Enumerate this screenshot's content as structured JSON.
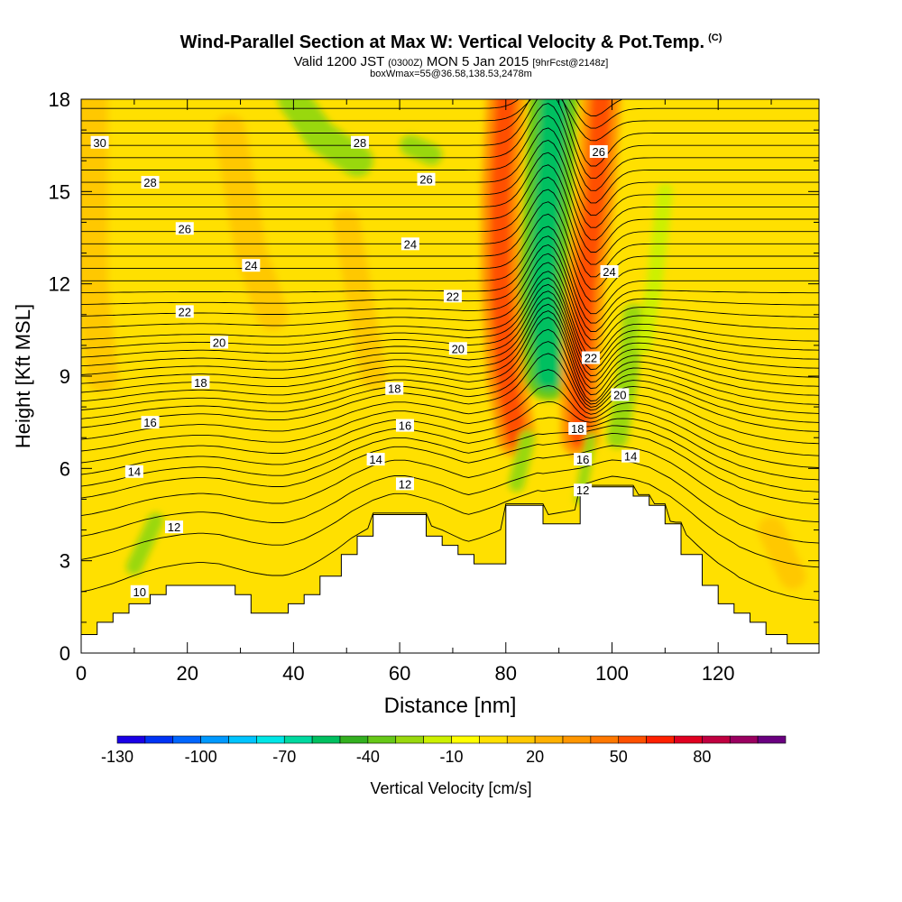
{
  "header": {
    "title": "Wind-Parallel Section at Max W: Vertical Velocity & Pot.Temp.",
    "title_mark": "(C)",
    "subtitle_a": "Valid 1200 JST",
    "subtitle_b": "(0300Z)",
    "subtitle_c": "MON 5 Jan 2015",
    "subtitle_d": "[9hrFcst@2148z]",
    "subtitle_line3": "boxWmax=55@36.58,138.53,2478m"
  },
  "chart_data": {
    "type": "heatmap",
    "xlabel": "Distance [nm]",
    "ylabel": "Height [Kft MSL]",
    "xlim": [
      0,
      139
    ],
    "ylim": [
      0,
      18
    ],
    "x_ticks": [
      0,
      20,
      40,
      60,
      80,
      100,
      120
    ],
    "y_ticks": [
      0,
      3,
      6,
      9,
      12,
      15,
      18
    ],
    "colorbar": {
      "label": "Vertical Velocity [cm/s]",
      "range": [
        -130,
        110
      ],
      "step": 10,
      "tick_labels": [
        -130,
        -100,
        -70,
        -40,
        -10,
        20,
        50,
        80
      ],
      "colors": [
        "#1a00e6",
        "#0033f5",
        "#0066ff",
        "#0099ff",
        "#00c4ff",
        "#00e6e6",
        "#00d9a0",
        "#00c060",
        "#33b020",
        "#66c818",
        "#99d80e",
        "#ccf000",
        "#ffff00",
        "#ffe000",
        "#ffc800",
        "#ffb000",
        "#ff9600",
        "#ff7800",
        "#ff5000",
        "#ff2000",
        "#e00020",
        "#c00040",
        "#9a0060",
        "#6a0080"
      ]
    },
    "terrain_kft": [
      [
        0,
        0.6
      ],
      [
        3,
        0.6
      ],
      [
        3,
        1.0
      ],
      [
        6,
        1.0
      ],
      [
        6,
        1.3
      ],
      [
        9,
        1.3
      ],
      [
        9,
        1.6
      ],
      [
        13,
        1.6
      ],
      [
        13,
        1.9
      ],
      [
        16,
        1.9
      ],
      [
        16,
        2.2
      ],
      [
        29,
        2.2
      ],
      [
        29,
        1.9
      ],
      [
        32,
        1.9
      ],
      [
        32,
        1.3
      ],
      [
        39,
        1.3
      ],
      [
        39,
        1.6
      ],
      [
        42,
        1.6
      ],
      [
        42,
        1.9
      ],
      [
        45,
        1.9
      ],
      [
        45,
        2.5
      ],
      [
        49,
        2.5
      ],
      [
        49,
        3.2
      ],
      [
        52,
        3.2
      ],
      [
        52,
        3.8
      ],
      [
        55,
        3.8
      ],
      [
        55,
        4.5
      ],
      [
        65,
        4.5
      ],
      [
        65,
        3.8
      ],
      [
        68,
        3.8
      ],
      [
        68,
        3.5
      ],
      [
        71,
        3.5
      ],
      [
        71,
        3.2
      ],
      [
        74,
        3.2
      ],
      [
        74,
        2.9
      ],
      [
        80,
        2.9
      ],
      [
        80,
        4.8
      ],
      [
        87,
        4.8
      ],
      [
        87,
        4.2
      ],
      [
        94,
        4.2
      ],
      [
        94,
        5.4
      ],
      [
        104,
        5.4
      ],
      [
        104,
        5.1
      ],
      [
        107,
        5.1
      ],
      [
        107,
        4.8
      ],
      [
        110,
        4.8
      ],
      [
        110,
        4.2
      ],
      [
        113,
        4.2
      ],
      [
        113,
        3.2
      ],
      [
        117,
        3.2
      ],
      [
        117,
        2.2
      ],
      [
        120,
        2.2
      ],
      [
        120,
        1.6
      ],
      [
        123,
        1.6
      ],
      [
        123,
        1.3
      ],
      [
        126,
        1.3
      ],
      [
        126,
        1.0
      ],
      [
        129,
        1.0
      ],
      [
        129,
        0.6
      ],
      [
        133,
        0.6
      ],
      [
        133,
        0.3
      ],
      [
        139,
        0.3
      ],
      [
        139,
        0
      ],
      [
        0,
        0
      ]
    ],
    "velocity_features": [
      {
        "kind": "updraft",
        "value": 55,
        "path": [
          [
            80,
            18
          ],
          [
            79,
            15
          ],
          [
            79,
            12
          ],
          [
            80,
            9
          ],
          [
            82,
            7
          ]
        ],
        "width_nm": 4
      },
      {
        "kind": "downdraft",
        "value": -60,
        "path": [
          [
            89,
            18
          ],
          [
            88,
            15
          ],
          [
            87,
            12
          ],
          [
            88,
            9
          ]
        ],
        "width_nm": 5
      },
      {
        "kind": "updraft",
        "value": 55,
        "path": [
          [
            98,
            18
          ],
          [
            97,
            15
          ],
          [
            95,
            12
          ],
          [
            94,
            9
          ],
          [
            94,
            7
          ]
        ],
        "width_nm": 4
      },
      {
        "kind": "downdraft",
        "value": -30,
        "path": [
          [
            96,
            7
          ],
          [
            95,
            6
          ],
          [
            94,
            5
          ]
        ],
        "width_nm": 2
      },
      {
        "kind": "downdraft",
        "value": -25,
        "path": [
          [
            104,
            11
          ],
          [
            103,
            9
          ],
          [
            101,
            7
          ]
        ],
        "width_nm": 4
      },
      {
        "kind": "downdraft",
        "value": -20,
        "path": [
          [
            110,
            15
          ],
          [
            108,
            12
          ],
          [
            106,
            10
          ]
        ],
        "width_nm": 3
      },
      {
        "kind": "downdraft",
        "value": -25,
        "path": [
          [
            40,
            18
          ],
          [
            45,
            16.8
          ],
          [
            52,
            16
          ]
        ],
        "width_nm": 6
      },
      {
        "kind": "downdraft",
        "value": -25,
        "path": [
          [
            62,
            16.5
          ],
          [
            66,
            16.2
          ]
        ],
        "width_nm": 4
      },
      {
        "kind": "downdraft",
        "value": -25,
        "path": [
          [
            10,
            2.8
          ],
          [
            14,
            4.3
          ]
        ],
        "width_nm": 3
      },
      {
        "kind": "downdraft",
        "value": -25,
        "path": [
          [
            82,
            5.5
          ],
          [
            84,
            7
          ]
        ],
        "width_nm": 3
      },
      {
        "kind": "updraft",
        "value": 15,
        "path": [
          [
            2,
            18
          ],
          [
            2,
            12
          ],
          [
            4,
            9
          ]
        ],
        "width_nm": 6
      },
      {
        "kind": "updraft",
        "value": 15,
        "path": [
          [
            28,
            17
          ],
          [
            32,
            13
          ],
          [
            36,
            11
          ]
        ],
        "width_nm": 6
      },
      {
        "kind": "updraft",
        "value": 15,
        "path": [
          [
            50,
            14
          ],
          [
            53,
            11
          ],
          [
            55,
            9
          ]
        ],
        "width_nm": 5
      },
      {
        "kind": "updraft",
        "value": 12,
        "path": [
          [
            130,
            4
          ],
          [
            134,
            2.5
          ]
        ],
        "width_nm": 5
      }
    ],
    "theta_contours": {
      "values": [
        10,
        10.5,
        11,
        11.5,
        12,
        12.5,
        13,
        13.5,
        14,
        14.5,
        15,
        15.5,
        16,
        16.5,
        17,
        17.5,
        18,
        18.5,
        19,
        19.5,
        20,
        20.5,
        21,
        21.5,
        22,
        22.5,
        23,
        23.5,
        24,
        24.5,
        25,
        25.5,
        26,
        26.5,
        27,
        27.5,
        28,
        28.5,
        29,
        29.5,
        30
      ],
      "ref_heights_kft": [
        1.5,
        2.6,
        3.4,
        4.1,
        4.7,
        5.1,
        5.5,
        5.9,
        6.3,
        6.7,
        7.1,
        7.4,
        7.7,
        8.0,
        8.3,
        8.6,
        8.9,
        9.2,
        9.5,
        9.8,
        10.1,
        10.5,
        10.9,
        11.3,
        11.7,
        12.1,
        12.5,
        12.9,
        13.3,
        13.7,
        14.1,
        14.5,
        14.9,
        15.3,
        15.7,
        16.1,
        16.5,
        16.9,
        17.3,
        17.7,
        18.1
      ]
    },
    "theta_labels": [
      {
        "text": "30",
        "x": 3.5,
        "y": 16.6
      },
      {
        "text": "28",
        "x": 13,
        "y": 15.3
      },
      {
        "text": "26",
        "x": 19.5,
        "y": 13.8
      },
      {
        "text": "24",
        "x": 32,
        "y": 12.6
      },
      {
        "text": "22",
        "x": 19.5,
        "y": 11.1
      },
      {
        "text": "20",
        "x": 26,
        "y": 10.1
      },
      {
        "text": "18",
        "x": 22.5,
        "y": 8.8
      },
      {
        "text": "16",
        "x": 13,
        "y": 7.5
      },
      {
        "text": "14",
        "x": 10,
        "y": 5.9
      },
      {
        "text": "12",
        "x": 17.5,
        "y": 4.1
      },
      {
        "text": "10",
        "x": 11,
        "y": 2.0
      },
      {
        "text": "28",
        "x": 52.5,
        "y": 16.6
      },
      {
        "text": "26",
        "x": 65,
        "y": 15.4
      },
      {
        "text": "24",
        "x": 62,
        "y": 13.3
      },
      {
        "text": "22",
        "x": 70,
        "y": 11.6
      },
      {
        "text": "20",
        "x": 71,
        "y": 9.9
      },
      {
        "text": "18",
        "x": 59,
        "y": 8.6
      },
      {
        "text": "16",
        "x": 61,
        "y": 7.4
      },
      {
        "text": "14",
        "x": 55.5,
        "y": 6.3
      },
      {
        "text": "12",
        "x": 61,
        "y": 5.5
      },
      {
        "text": "26",
        "x": 97.5,
        "y": 16.3
      },
      {
        "text": "24",
        "x": 99.5,
        "y": 12.4
      },
      {
        "text": "22",
        "x": 96,
        "y": 9.6
      },
      {
        "text": "20",
        "x": 101.5,
        "y": 8.4
      },
      {
        "text": "18",
        "x": 93.5,
        "y": 7.3
      },
      {
        "text": "16",
        "x": 94.5,
        "y": 6.3
      },
      {
        "text": "14",
        "x": 103.5,
        "y": 6.4
      },
      {
        "text": "12",
        "x": 94.5,
        "y": 5.3
      }
    ]
  }
}
